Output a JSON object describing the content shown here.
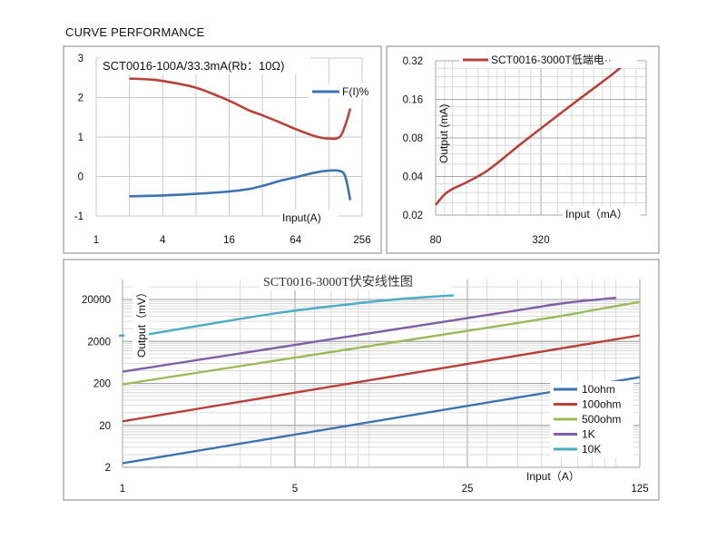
{
  "page": {
    "title": "CURVE PERFORMANCE"
  },
  "chart_data": [
    {
      "type": "line",
      "title": "SCT0016-100A/33.3mA(Rb：10Ω)",
      "xlabel": "Input(A)",
      "ylabel": "",
      "x_scale": "log2",
      "x_ticks": [
        "1",
        "4",
        "16",
        "64",
        "256"
      ],
      "y_ticks": [
        "3",
        "2",
        "1",
        "0",
        "-1"
      ],
      "xlim": [
        1,
        256
      ],
      "ylim": [
        -1,
        3
      ],
      "grid": true,
      "legend": "top-right",
      "series": [
        {
          "name": "F(I)%",
          "color": "#3b72b0",
          "x": [
            2,
            4,
            8,
            16,
            24,
            32,
            48,
            64,
            96,
            128,
            160,
            180,
            200
          ],
          "y": [
            -0.5,
            -0.48,
            -0.44,
            -0.38,
            -0.32,
            -0.24,
            -0.1,
            -0.02,
            0.1,
            0.15,
            0.14,
            0.0,
            -0.6
          ]
        },
        {
          "name": "",
          "color": "#b8413a",
          "x": [
            2,
            3,
            4,
            8,
            16,
            24,
            32,
            48,
            64,
            96,
            128,
            160,
            180,
            200
          ],
          "y": [
            2.48,
            2.46,
            2.42,
            2.25,
            1.92,
            1.68,
            1.55,
            1.35,
            1.2,
            1.02,
            0.96,
            1.0,
            1.3,
            1.72
          ]
        }
      ]
    },
    {
      "type": "line",
      "xlabel": "Input（mA）",
      "ylabel": "Output (mA)",
      "x_scale": "log",
      "y_scale": "log",
      "x_ticks": [
        "80",
        "320"
      ],
      "y_ticks": [
        "0.32",
        "0.16",
        "0.08",
        "0.04",
        "0.02"
      ],
      "xlim": [
        80,
        1280
      ],
      "ylim": [
        0.02,
        0.32
      ],
      "grid": true,
      "legend": "top",
      "series": [
        {
          "name": "SCT0016-3000T低端电··",
          "color": "#b8413a",
          "x": [
            80,
            90,
            100,
            120,
            160,
            240,
            320,
            480,
            640,
            800,
            960
          ],
          "y": [
            0.024,
            0.029,
            0.032,
            0.036,
            0.045,
            0.07,
            0.095,
            0.145,
            0.195,
            0.245,
            0.3
          ]
        }
      ]
    },
    {
      "type": "line",
      "title": "SCT0016-3000T伏安线性图",
      "xlabel": "Input（A）",
      "ylabel": "Output（mV）",
      "x_scale": "log",
      "y_scale": "log",
      "x_ticks": [
        "1",
        "5",
        "25",
        "125"
      ],
      "y_ticks": [
        "20000",
        "2000",
        "200",
        "20",
        "2"
      ],
      "xlim": [
        1,
        125
      ],
      "ylim": [
        2,
        40000
      ],
      "grid": true,
      "legend": "bottom-right",
      "series": [
        {
          "name": "10ohm",
          "color": "#3b72b0",
          "x": [
            1,
            125
          ],
          "y": [
            2.5,
            280
          ]
        },
        {
          "name": "100ohm",
          "color": "#b8413a",
          "x": [
            1,
            125
          ],
          "y": [
            25,
            2800
          ]
        },
        {
          "name": "500ohm",
          "color": "#9bbb59",
          "x": [
            1,
            40,
            80,
            125
          ],
          "y": [
            190,
            5500,
            11000,
            17500
          ]
        },
        {
          "name": "1K",
          "color": "#7f5fa8",
          "x": [
            1,
            30,
            60,
            100
          ],
          "y": [
            380,
            8500,
            16000,
            22000
          ]
        },
        {
          "name": "10K",
          "color": "#4aacc5",
          "x": [
            1,
            4,
            8,
            14,
            22
          ],
          "y": [
            2900,
            9000,
            15000,
            21000,
            25000
          ]
        }
      ]
    }
  ]
}
